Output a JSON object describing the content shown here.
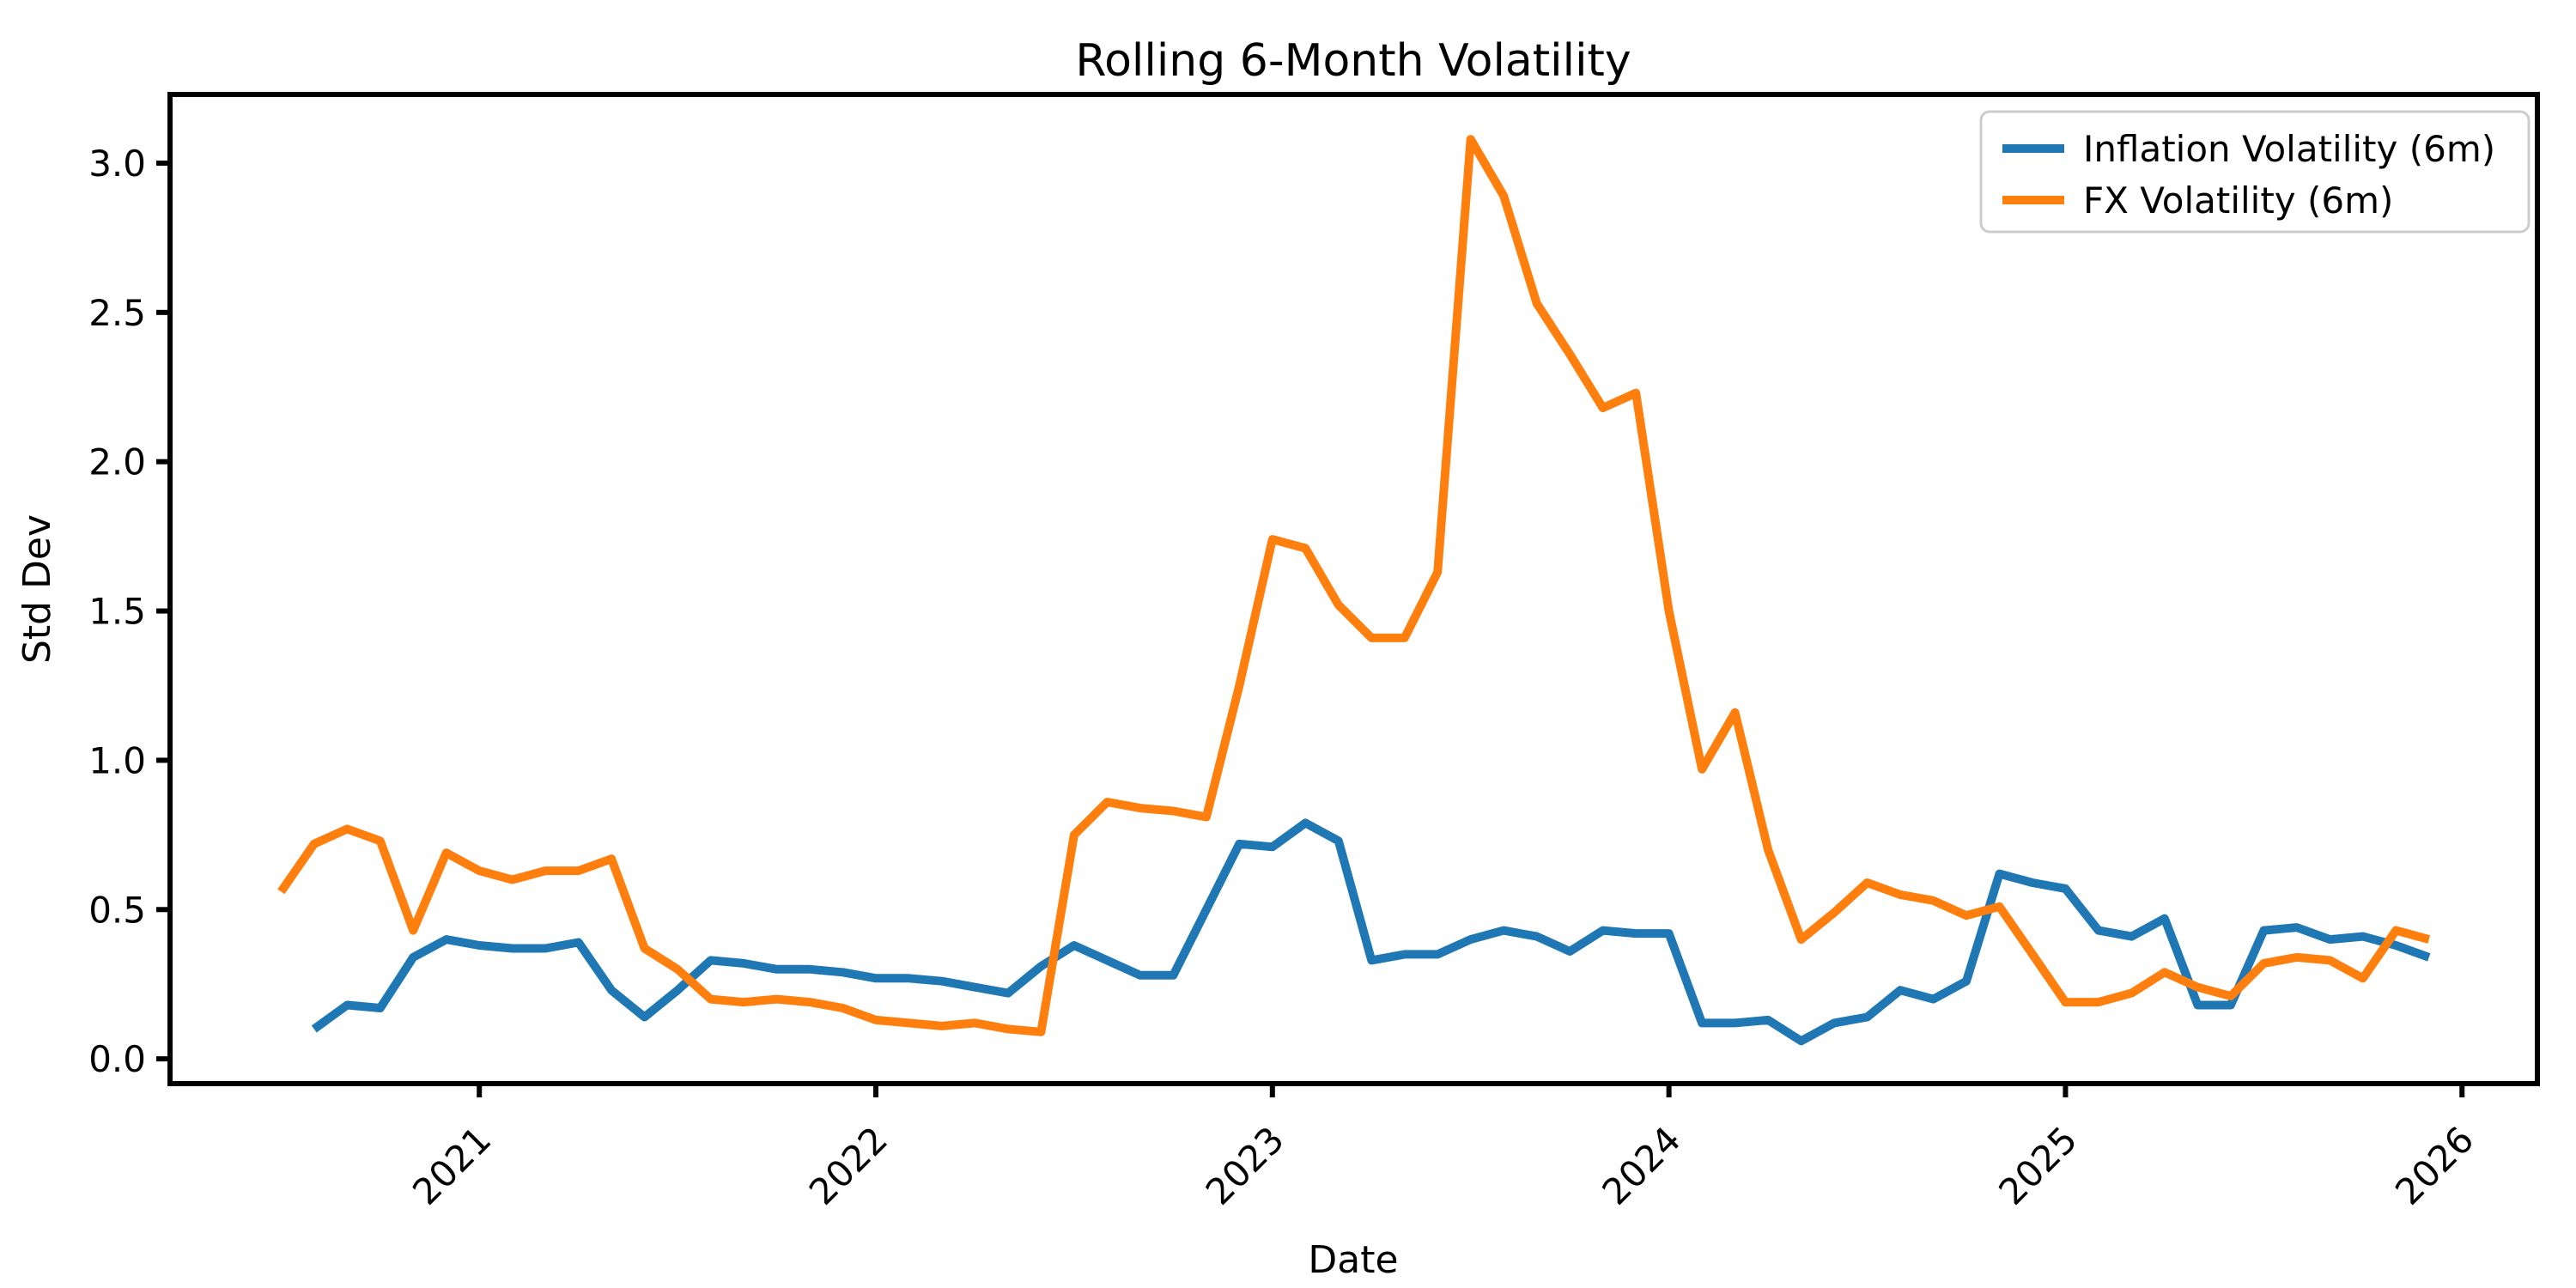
{
  "chart_data": {
    "type": "line",
    "title": "Rolling 6-Month Volatility",
    "xlabel": "Date",
    "ylabel": "Std Dev",
    "legend_position": "upper right",
    "grid": false,
    "x_ticks": [
      2021,
      2022,
      2023,
      2024,
      2025,
      2026
    ],
    "y_ticks": [
      0.0,
      0.5,
      1.0,
      1.5,
      2.0,
      2.5,
      3.0
    ],
    "x_range": [
      2020.22,
      2026.19
    ],
    "y_range": [
      -0.083,
      3.23
    ],
    "series": [
      {
        "name": "Inflation Volatility (6m)",
        "color": "#1f77b4",
        "start_year": 2020,
        "start_month": 8,
        "values": [
          0.1,
          0.18,
          0.17,
          0.34,
          0.4,
          0.38,
          0.37,
          0.37,
          0.39,
          0.23,
          0.14,
          0.23,
          0.33,
          0.32,
          0.3,
          0.3,
          0.29,
          0.27,
          0.27,
          0.26,
          0.24,
          0.22,
          0.31,
          0.38,
          0.33,
          0.28,
          0.28,
          0.5,
          0.72,
          0.71,
          0.79,
          0.73,
          0.33,
          0.35,
          0.35,
          0.4,
          0.43,
          0.41,
          0.36,
          0.43,
          0.42,
          0.42,
          0.12,
          0.12,
          0.13,
          0.06,
          0.12,
          0.14,
          0.23,
          0.2,
          0.26,
          0.62,
          0.59,
          0.57,
          0.43,
          0.41,
          0.47,
          0.18,
          0.18,
          0.43,
          0.44,
          0.4,
          0.41,
          0.38,
          0.34
        ]
      },
      {
        "name": "FX Volatility (6m)",
        "color": "#ff7f0e",
        "start_year": 2020,
        "start_month": 7,
        "values": [
          0.56,
          0.72,
          0.77,
          0.73,
          0.43,
          0.69,
          0.63,
          0.6,
          0.63,
          0.63,
          0.67,
          0.37,
          0.3,
          0.2,
          0.19,
          0.2,
          0.19,
          0.17,
          0.13,
          0.12,
          0.11,
          0.12,
          0.1,
          0.09,
          0.75,
          0.86,
          0.84,
          0.83,
          0.81,
          1.25,
          1.74,
          1.71,
          1.52,
          1.41,
          1.41,
          1.63,
          3.08,
          2.89,
          2.53,
          2.36,
          2.18,
          2.23,
          1.5,
          0.97,
          1.16,
          0.7,
          0.4,
          0.49,
          0.59,
          0.55,
          0.53,
          0.48,
          0.51,
          0.35,
          0.19,
          0.19,
          0.22,
          0.29,
          0.24,
          0.21,
          0.32,
          0.34,
          0.33,
          0.27,
          0.43,
          0.4
        ]
      }
    ]
  }
}
